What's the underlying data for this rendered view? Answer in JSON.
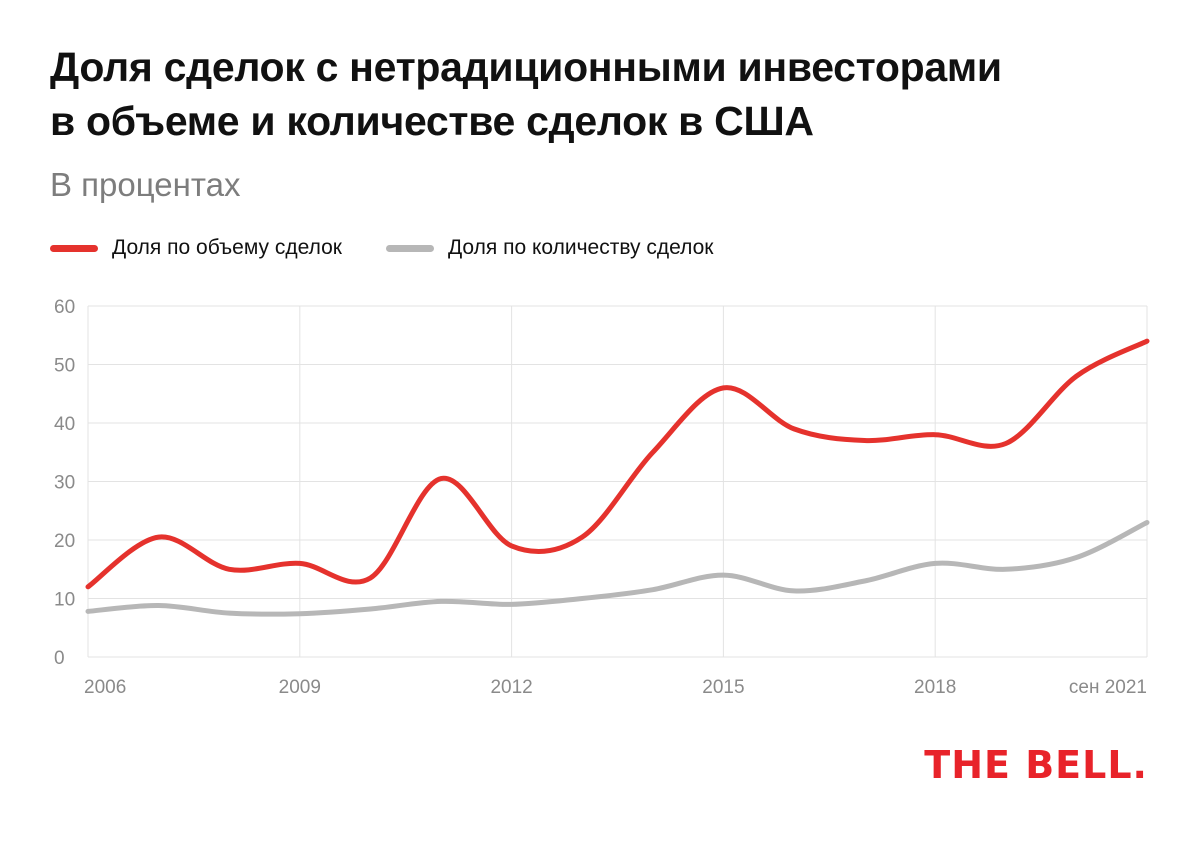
{
  "header": {
    "title_line1": "Доля сделок с нетрадиционными инвесторами",
    "title_line2": "в объеме и количестве сделок в США",
    "subtitle": "В процентах"
  },
  "legend": [
    {
      "label": "Доля по объему сделок",
      "color": "#e5322d"
    },
    {
      "label": "Доля по количеству сделок",
      "color": "#b7b7b7"
    }
  ],
  "logo": "THE BELL.",
  "chart_data": {
    "type": "line",
    "x": [
      2006,
      2007,
      2008,
      2009,
      2010,
      2011,
      2012,
      2013,
      2014,
      2015,
      2016,
      2017,
      2018,
      2019,
      2020,
      2021
    ],
    "x_tick_labels": [
      {
        "x": 2006,
        "label": "2006"
      },
      {
        "x": 2009,
        "label": "2009"
      },
      {
        "x": 2012,
        "label": "2012"
      },
      {
        "x": 2015,
        "label": "2015"
      },
      {
        "x": 2018,
        "label": "2018"
      },
      {
        "x": 2021,
        "label": "сен 2021"
      }
    ],
    "y_ticks": [
      0,
      10,
      20,
      30,
      40,
      50,
      60
    ],
    "ylim": [
      0,
      60
    ],
    "xlim": [
      2006,
      2021
    ],
    "grid": true,
    "legend_position": "top-left",
    "series": [
      {
        "name": "Доля по объему сделок",
        "color": "#e5322d",
        "values": [
          12,
          20.5,
          15,
          16,
          13.5,
          30.5,
          19,
          20.5,
          35,
          46,
          39,
          37,
          38,
          36.5,
          48,
          54
        ]
      },
      {
        "name": "Доля по количеству сделок",
        "color": "#b7b7b7",
        "values": [
          7.8,
          8.8,
          7.5,
          7.4,
          8.2,
          9.5,
          9,
          10,
          11.5,
          14,
          11.3,
          13,
          16,
          15,
          17,
          23
        ]
      }
    ]
  }
}
